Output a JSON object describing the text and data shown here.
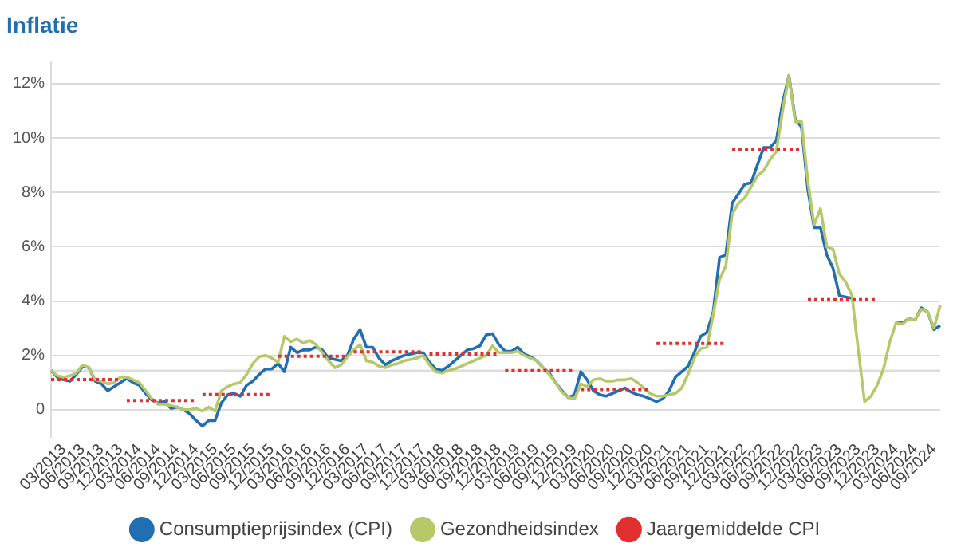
{
  "chart_data": {
    "type": "line",
    "title": "Inflatie",
    "categories": [
      null,
      null,
      "03/2013",
      null,
      null,
      "06/2013",
      null,
      null,
      "09/2013",
      null,
      null,
      "12/2013",
      null,
      null,
      "03/2014",
      null,
      null,
      "06/2014",
      null,
      null,
      "09/2014",
      null,
      null,
      "12/2014",
      null,
      null,
      "03/2015",
      null,
      null,
      "06/2015",
      null,
      null,
      "09/2015",
      null,
      null,
      "12/2015",
      null,
      null,
      "03/2016",
      null,
      null,
      "06/2016",
      null,
      null,
      "09/2016",
      null,
      null,
      "12/2016",
      null,
      null,
      "03/2017",
      null,
      null,
      "06/2017",
      null,
      null,
      "09/2017",
      null,
      null,
      "12/2017",
      null,
      null,
      "03/2018",
      null,
      null,
      "06/2018",
      null,
      null,
      "09/2018",
      null,
      null,
      "12/2018",
      null,
      null,
      "03/2019",
      null,
      null,
      "06/2019",
      null,
      null,
      "09/2019",
      null,
      null,
      "12/2019",
      null,
      null,
      "03/2020",
      null,
      null,
      "06/2020",
      null,
      null,
      "09/2020",
      null,
      null,
      "12/2020",
      null,
      null,
      "03/2021",
      null,
      null,
      "06/2021",
      null,
      null,
      "09/2021",
      null,
      null,
      "12/2021",
      null,
      null,
      "03/2022",
      null,
      null,
      "06/2022",
      null,
      null,
      "09/2022",
      null,
      null,
      "12/2022",
      null,
      null,
      "03/2023",
      null,
      null,
      "06/2023",
      null,
      null,
      "09/2023",
      null,
      null,
      "12/2023",
      null,
      null,
      "03/2024",
      null,
      null,
      "06/2024",
      null,
      null,
      "09/2024",
      null
    ],
    "series": [
      {
        "name": "Consumptieprijsindex (CPI)",
        "color": "#1f6fb2",
        "values": [
          1.45,
          1.2,
          1.1,
          1.05,
          1.3,
          1.6,
          1.55,
          1.05,
          0.95,
          0.7,
          0.85,
          1.0,
          1.15,
          1.0,
          0.9,
          0.6,
          0.35,
          0.25,
          0.3,
          0.05,
          0.1,
          0.0,
          -0.15,
          -0.4,
          -0.6,
          -0.4,
          -0.4,
          0.25,
          0.55,
          0.6,
          0.5,
          0.9,
          1.05,
          1.3,
          1.5,
          1.5,
          1.7,
          1.4,
          2.3,
          2.1,
          2.2,
          2.2,
          2.3,
          2.2,
          1.9,
          1.85,
          1.8,
          2.0,
          2.6,
          2.95,
          2.3,
          2.3,
          1.9,
          1.65,
          1.8,
          1.9,
          2.0,
          2.05,
          2.1,
          2.1,
          1.75,
          1.5,
          1.45,
          1.6,
          1.8,
          2.0,
          2.2,
          2.25,
          2.35,
          2.75,
          2.8,
          2.4,
          2.15,
          2.15,
          2.3,
          2.05,
          1.95,
          1.8,
          1.55,
          1.35,
          1.0,
          0.7,
          0.45,
          0.55,
          1.4,
          1.1,
          0.7,
          0.55,
          0.5,
          0.6,
          0.7,
          0.8,
          0.65,
          0.55,
          0.5,
          0.4,
          0.3,
          0.4,
          0.7,
          1.2,
          1.4,
          1.6,
          2.1,
          2.7,
          2.85,
          3.6,
          5.6,
          5.7,
          7.6,
          7.95,
          8.3,
          8.35,
          9.0,
          9.65,
          9.65,
          9.9,
          11.3,
          12.3,
          10.7,
          10.4,
          8.1,
          6.7,
          6.7,
          5.7,
          5.2,
          4.2,
          4.15,
          4.1,
          null,
          null,
          null,
          null,
          null,
          null,
          3.2,
          3.2,
          3.35,
          3.3,
          3.75,
          3.6,
          2.95,
          3.1
        ]
      },
      {
        "name": "Gezondheidsindex",
        "color": "#b7c86b",
        "values": [
          1.45,
          1.25,
          1.2,
          1.25,
          1.35,
          1.65,
          1.55,
          1.1,
          1.05,
          0.95,
          1.0,
          1.2,
          1.2,
          1.1,
          1.0,
          0.7,
          0.4,
          0.2,
          0.2,
          0.15,
          0.1,
          0.0,
          0.0,
          0.05,
          -0.05,
          0.1,
          -0.05,
          0.7,
          0.85,
          0.95,
          1.0,
          1.3,
          1.7,
          1.95,
          2.0,
          1.9,
          1.75,
          2.7,
          2.5,
          2.6,
          2.45,
          2.55,
          2.4,
          2.1,
          1.8,
          1.55,
          1.65,
          1.95,
          2.2,
          2.4,
          1.8,
          1.75,
          1.6,
          1.55,
          1.65,
          1.7,
          1.8,
          1.85,
          1.9,
          2.0,
          1.65,
          1.4,
          1.35,
          1.45,
          1.5,
          1.6,
          1.7,
          1.8,
          1.9,
          2.0,
          2.35,
          2.1,
          2.1,
          2.1,
          2.15,
          2.0,
          1.9,
          1.8,
          1.55,
          1.3,
          1.0,
          0.65,
          0.45,
          0.4,
          0.95,
          0.85,
          1.1,
          1.15,
          1.05,
          1.05,
          1.1,
          1.1,
          1.15,
          1.0,
          0.8,
          0.6,
          0.5,
          0.5,
          0.55,
          0.6,
          0.8,
          1.3,
          1.9,
          2.25,
          2.3,
          3.5,
          4.8,
          5.3,
          7.2,
          7.6,
          7.8,
          8.2,
          8.6,
          8.8,
          9.2,
          9.5,
          11.0,
          12.3,
          10.6,
          10.6,
          8.4,
          6.8,
          7.4,
          6.0,
          5.9,
          5.0,
          4.7,
          4.2,
          2.2,
          0.3,
          0.5,
          0.9,
          1.5,
          2.5,
          3.2,
          3.15,
          3.35,
          3.3,
          3.7,
          3.6,
          3.0,
          3.85
        ]
      },
      {
        "name": "Jaargemiddelde CPI",
        "color": "#e03030",
        "line_style": "dotted",
        "values": [
          1.11,
          1.11,
          1.11,
          1.11,
          1.11,
          1.11,
          1.11,
          1.11,
          1.11,
          1.11,
          1.11,
          1.11,
          0.34,
          0.34,
          0.34,
          0.34,
          0.34,
          0.34,
          0.34,
          0.34,
          0.34,
          0.34,
          0.34,
          0.34,
          0.56,
          0.56,
          0.56,
          0.56,
          0.56,
          0.56,
          0.56,
          0.56,
          0.56,
          0.56,
          0.56,
          0.56,
          1.97,
          1.97,
          1.97,
          1.97,
          1.97,
          1.97,
          1.97,
          1.97,
          1.97,
          1.97,
          1.97,
          1.97,
          2.13,
          2.13,
          2.13,
          2.13,
          2.13,
          2.13,
          2.13,
          2.13,
          2.13,
          2.13,
          2.13,
          2.13,
          2.05,
          2.05,
          2.05,
          2.05,
          2.05,
          2.05,
          2.05,
          2.05,
          2.05,
          2.05,
          2.05,
          2.05,
          1.44,
          1.44,
          1.44,
          1.44,
          1.44,
          1.44,
          1.44,
          1.44,
          1.44,
          1.44,
          1.44,
          1.44,
          0.74,
          0.74,
          0.74,
          0.74,
          0.74,
          0.74,
          0.74,
          0.74,
          0.74,
          0.74,
          0.74,
          0.74,
          2.44,
          2.44,
          2.44,
          2.44,
          2.44,
          2.44,
          2.44,
          2.44,
          2.44,
          2.44,
          2.44,
          2.44,
          9.59,
          9.59,
          9.59,
          9.59,
          9.59,
          9.59,
          9.59,
          9.59,
          9.59,
          9.59,
          9.59,
          9.59,
          4.05,
          4.05,
          4.05,
          4.05,
          4.05,
          4.05,
          4.05,
          4.05,
          4.05,
          4.05,
          4.05,
          4.05,
          null,
          null,
          null,
          null,
          null,
          null,
          null,
          null,
          null,
          null
        ]
      }
    ],
    "ylim": [
      -1,
      12.8
    ],
    "yticks": [
      0,
      {
        "value": 2,
        "label": "2%"
      },
      {
        "value": 4,
        "label": "4%"
      },
      {
        "value": 6,
        "label": "6%"
      },
      {
        "value": 8,
        "label": "8%"
      },
      {
        "value": 10,
        "label": "10%"
      },
      {
        "value": 12,
        "label": "12%"
      }
    ],
    "ref_lines": [
      {
        "axis": "y",
        "value": 1.44,
        "color": "#dddddd"
      }
    ],
    "grid": "y",
    "legend": "bottom",
    "marker": "none",
    "line_style": "solid"
  }
}
